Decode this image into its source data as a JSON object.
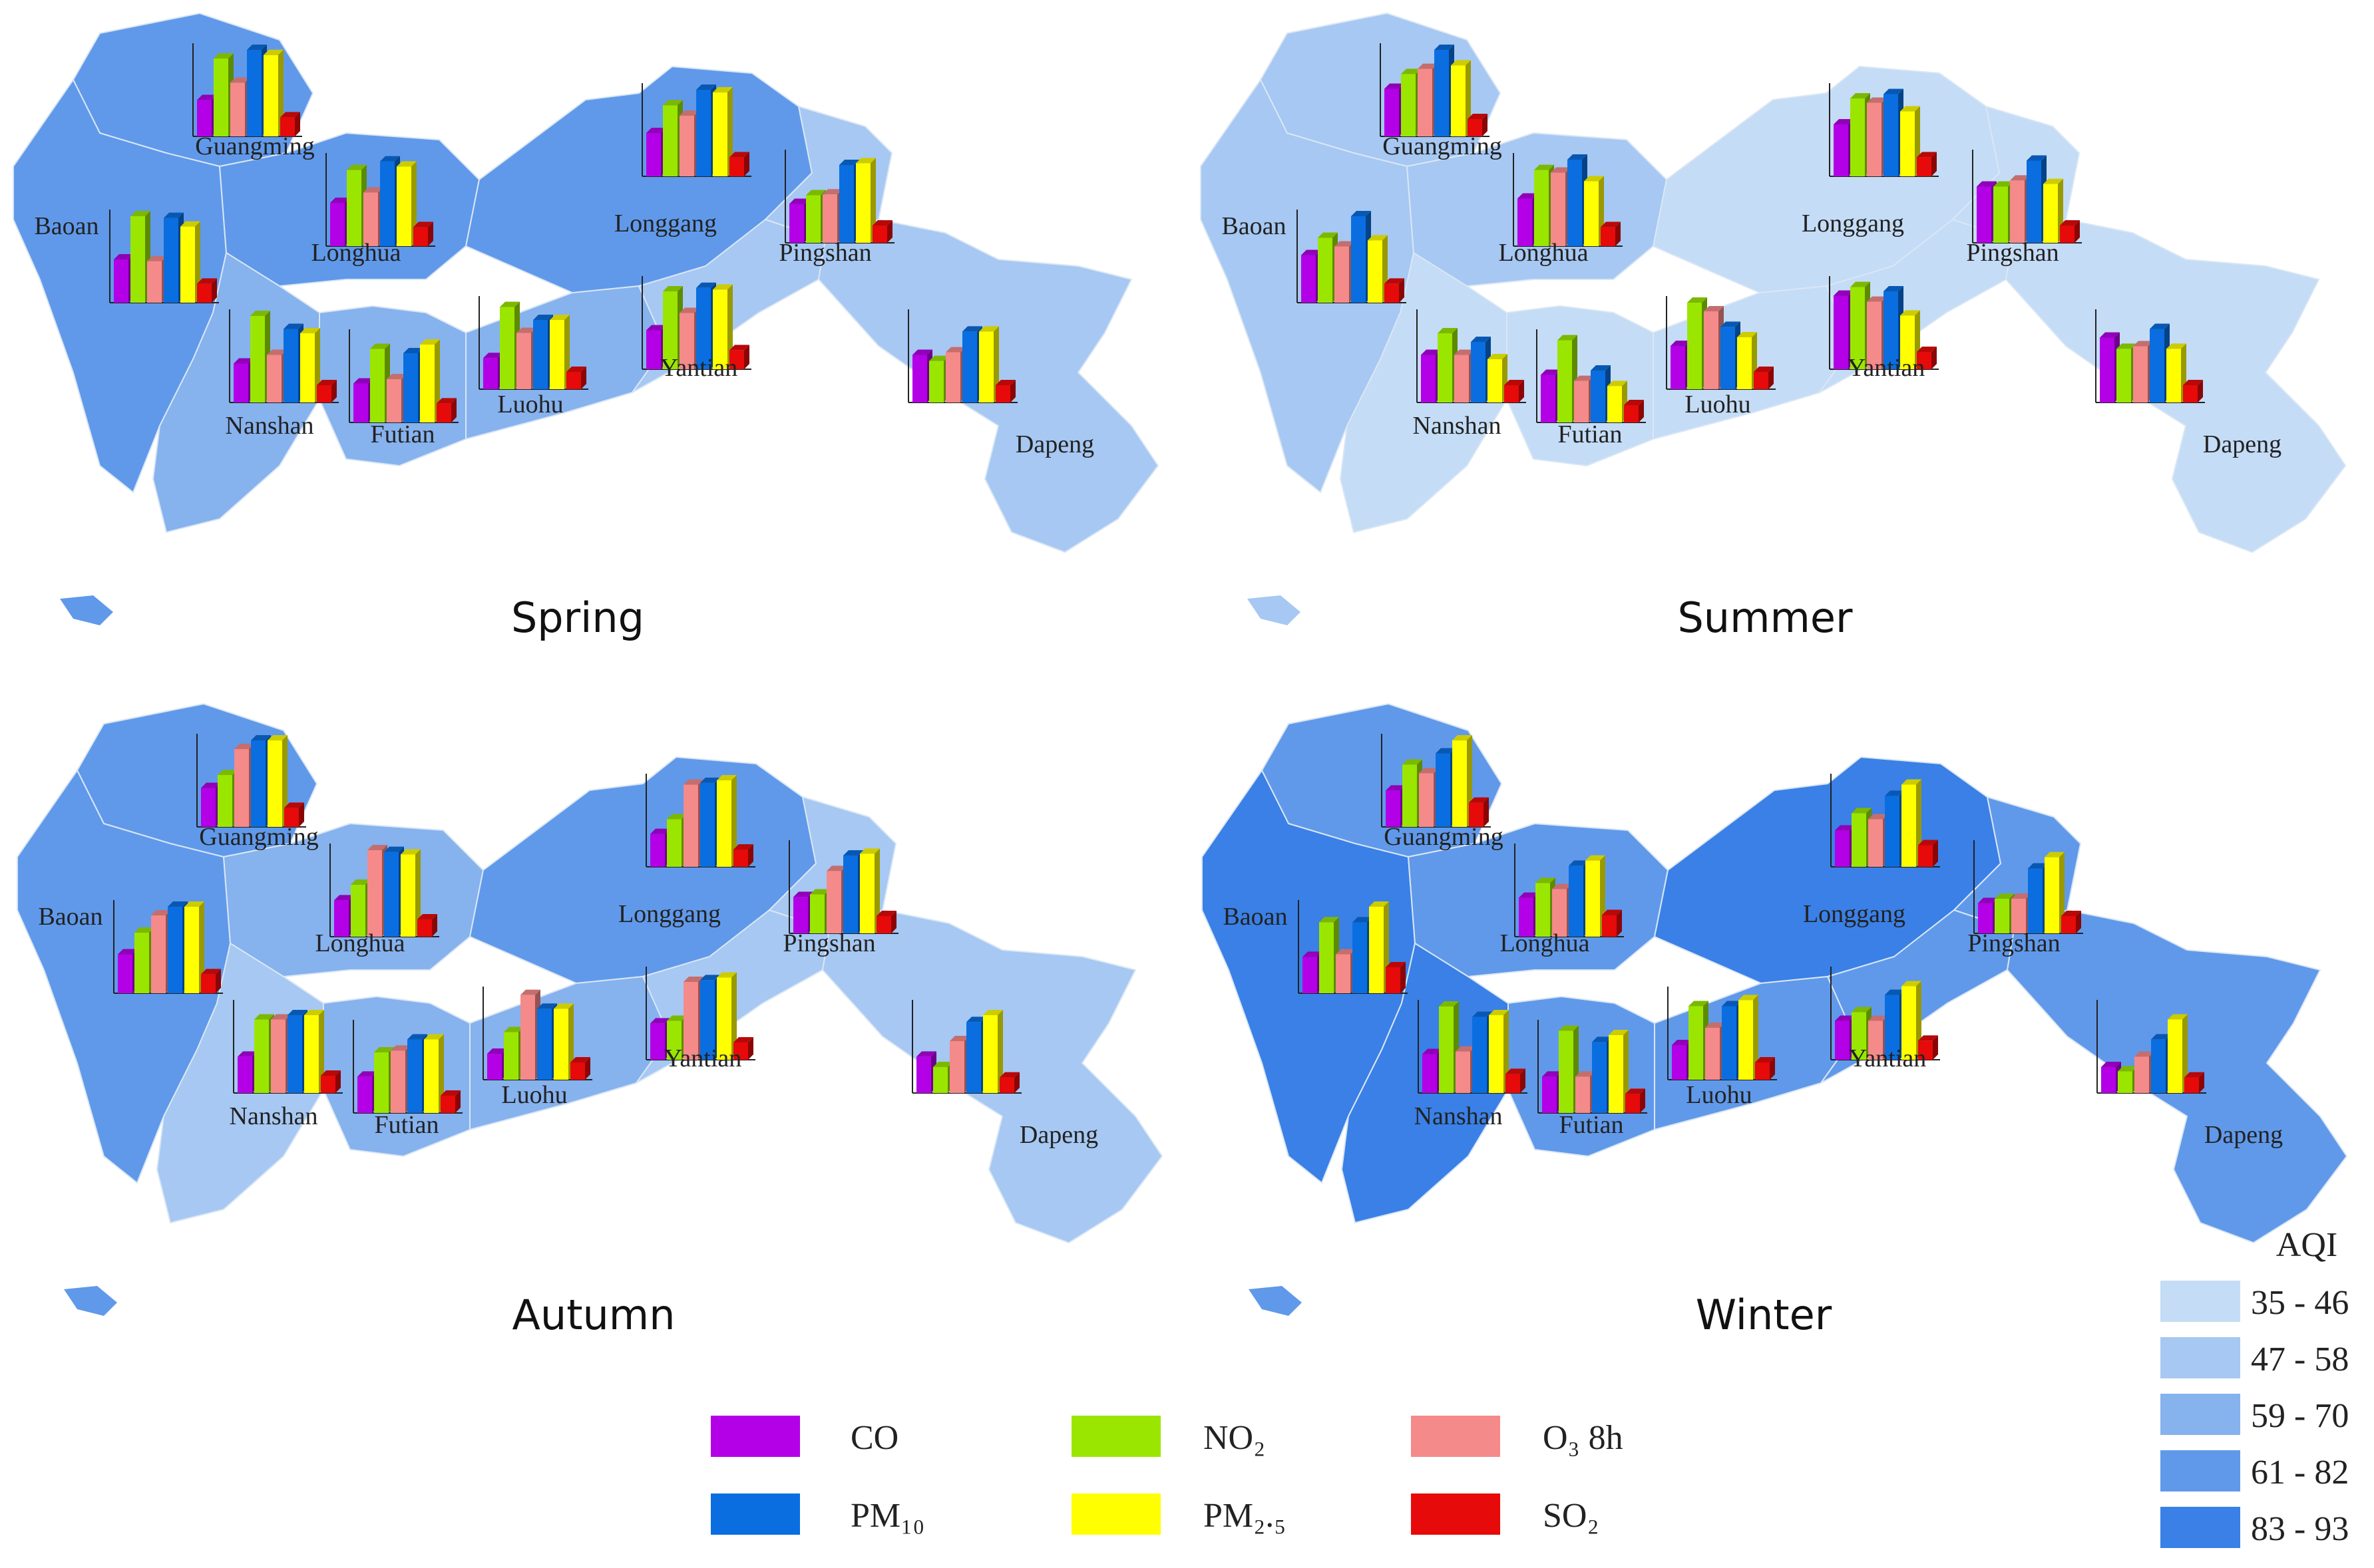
{
  "pollutant_colors": {
    "CO": "#b400e6",
    "NO2": "#9be600",
    "O3_8h": "#f58a8a",
    "PM10": "#0a6ee0",
    "PM2.5": "#ffff00",
    "SO2": "#e60a0a"
  },
  "pollutant_legend": [
    {
      "key": "CO",
      "label": "CO",
      "color": "#b400e6"
    },
    {
      "key": "NO2",
      "label": "NO₂",
      "color": "#9be600"
    },
    {
      "key": "O3_8h",
      "label": "O₃  8h",
      "color": "#f58a8a"
    },
    {
      "key": "PM10",
      "label": "PM₁₀",
      "color": "#0a6ee0"
    },
    {
      "key": "PM2.5",
      "label": "PM₂.₅",
      "color": "#ffff00"
    },
    {
      "key": "SO2",
      "label": "SO₂",
      "color": "#e60a0a"
    }
  ],
  "aqi_legend": {
    "title": "AQI",
    "classes": [
      {
        "label": "35 - 46",
        "color": "#c4dcf6"
      },
      {
        "label": "47 - 58",
        "color": "#a6c8f2"
      },
      {
        "label": "59 - 70",
        "color": "#86b2ee"
      },
      {
        "label": "61 - 82",
        "color": "#6099ea"
      },
      {
        "label": "83 - 93",
        "color": "#3a80e6"
      }
    ]
  },
  "seasons": [
    {
      "name": "Spring",
      "districts": [
        {
          "name": "Guangming",
          "aqi_class": 3,
          "bars": [
            0.42,
            0.9,
            0.62,
            1.0,
            0.94,
            0.22
          ]
        },
        {
          "name": "Baoan",
          "aqi_class": 3,
          "bars": [
            0.5,
            1.0,
            0.48,
            0.98,
            0.88,
            0.22
          ]
        },
        {
          "name": "Longhua",
          "aqi_class": 3,
          "bars": [
            0.5,
            0.88,
            0.62,
            0.98,
            0.92,
            0.22
          ]
        },
        {
          "name": "Longgang",
          "aqi_class": 3,
          "bars": [
            0.5,
            0.82,
            0.7,
            1.0,
            0.97,
            0.22
          ]
        },
        {
          "name": "Pingshan",
          "aqi_class": 1,
          "bars": [
            0.45,
            0.55,
            0.56,
            0.9,
            0.92,
            0.2
          ]
        },
        {
          "name": "Nanshan",
          "aqi_class": 2,
          "bars": [
            0.45,
            1.0,
            0.55,
            0.85,
            0.8,
            0.2
          ]
        },
        {
          "name": "Futian",
          "aqi_class": 2,
          "bars": [
            0.45,
            0.85,
            0.5,
            0.8,
            0.9,
            0.22
          ]
        },
        {
          "name": "Luohu",
          "aqi_class": 2,
          "bars": [
            0.36,
            0.95,
            0.65,
            0.8,
            0.8,
            0.2
          ]
        },
        {
          "name": "Yantian",
          "aqi_class": 1,
          "bars": [
            0.45,
            0.9,
            0.65,
            0.94,
            0.92,
            0.22
          ]
        },
        {
          "name": "Dapeng",
          "aqi_class": 1,
          "bars": [
            0.55,
            0.48,
            0.58,
            0.82,
            0.82,
            0.2
          ]
        }
      ]
    },
    {
      "name": "Summer",
      "districts": [
        {
          "name": "Guangming",
          "aqi_class": 1,
          "bars": [
            0.55,
            0.72,
            0.78,
            1.0,
            0.82,
            0.2
          ]
        },
        {
          "name": "Baoan",
          "aqi_class": 1,
          "bars": [
            0.55,
            0.75,
            0.65,
            1.0,
            0.72,
            0.22
          ]
        },
        {
          "name": "Longhua",
          "aqi_class": 1,
          "bars": [
            0.55,
            0.88,
            0.85,
            1.0,
            0.75,
            0.22
          ]
        },
        {
          "name": "Longgang",
          "aqi_class": 0,
          "bars": [
            0.6,
            0.9,
            0.85,
            0.95,
            0.75,
            0.22
          ]
        },
        {
          "name": "Pingshan",
          "aqi_class": 0,
          "bars": [
            0.65,
            0.65,
            0.72,
            0.95,
            0.68,
            0.2
          ]
        },
        {
          "name": "Nanshan",
          "aqi_class": 0,
          "bars": [
            0.55,
            0.8,
            0.55,
            0.7,
            0.5,
            0.2
          ]
        },
        {
          "name": "Futian",
          "aqi_class": 0,
          "bars": [
            0.55,
            0.95,
            0.48,
            0.6,
            0.42,
            0.2
          ]
        },
        {
          "name": "Luohu",
          "aqi_class": 0,
          "bars": [
            0.5,
            1.0,
            0.9,
            0.72,
            0.6,
            0.2
          ]
        },
        {
          "name": "Yantian",
          "aqi_class": 0,
          "bars": [
            0.85,
            0.95,
            0.78,
            0.9,
            0.62,
            0.2
          ]
        },
        {
          "name": "Dapeng",
          "aqi_class": 0,
          "bars": [
            0.75,
            0.62,
            0.65,
            0.85,
            0.62,
            0.2
          ]
        }
      ]
    },
    {
      "name": "Autumn",
      "districts": [
        {
          "name": "Guangming",
          "aqi_class": 3,
          "bars": [
            0.45,
            0.6,
            0.9,
            1.0,
            1.0,
            0.22
          ]
        },
        {
          "name": "Baoan",
          "aqi_class": 3,
          "bars": [
            0.45,
            0.7,
            0.9,
            1.0,
            1.0,
            0.22
          ]
        },
        {
          "name": "Longhua",
          "aqi_class": 2,
          "bars": [
            0.42,
            0.6,
            1.0,
            0.98,
            0.95,
            0.2
          ]
        },
        {
          "name": "Longgang",
          "aqi_class": 3,
          "bars": [
            0.38,
            0.55,
            0.95,
            0.97,
            1.0,
            0.2
          ]
        },
        {
          "name": "Pingshan",
          "aqi_class": 1,
          "bars": [
            0.42,
            0.45,
            0.72,
            0.9,
            0.92,
            0.2
          ]
        },
        {
          "name": "Nanshan",
          "aqi_class": 1,
          "bars": [
            0.42,
            0.85,
            0.85,
            0.9,
            0.9,
            0.2
          ]
        },
        {
          "name": "Futian",
          "aqi_class": 2,
          "bars": [
            0.42,
            0.7,
            0.72,
            0.85,
            0.85,
            0.2
          ]
        },
        {
          "name": "Luohu",
          "aqi_class": 2,
          "bars": [
            0.3,
            0.55,
            0.98,
            0.82,
            0.82,
            0.2
          ]
        },
        {
          "name": "Yantian",
          "aqi_class": 1,
          "bars": [
            0.42,
            0.45,
            0.9,
            0.92,
            0.95,
            0.2
          ]
        },
        {
          "name": "Dapeng",
          "aqi_class": 1,
          "bars": [
            0.42,
            0.3,
            0.6,
            0.82,
            0.9,
            0.18
          ]
        }
      ]
    },
    {
      "name": "Winter",
      "districts": [
        {
          "name": "Guangming",
          "aqi_class": 3,
          "bars": [
            0.42,
            0.72,
            0.62,
            0.85,
            1.0,
            0.28
          ]
        },
        {
          "name": "Baoan",
          "aqi_class": 4,
          "bars": [
            0.42,
            0.82,
            0.45,
            0.82,
            1.0,
            0.3
          ]
        },
        {
          "name": "Longhua",
          "aqi_class": 3,
          "bars": [
            0.45,
            0.62,
            0.55,
            0.82,
            0.88,
            0.25
          ]
        },
        {
          "name": "Longgang",
          "aqi_class": 4,
          "bars": [
            0.42,
            0.62,
            0.55,
            0.82,
            0.95,
            0.25
          ]
        },
        {
          "name": "Pingshan",
          "aqi_class": 3,
          "bars": [
            0.35,
            0.4,
            0.4,
            0.75,
            0.88,
            0.2
          ]
        },
        {
          "name": "Nanshan",
          "aqi_class": 4,
          "bars": [
            0.45,
            1.0,
            0.48,
            0.88,
            0.9,
            0.22
          ]
        },
        {
          "name": "Futian",
          "aqi_class": 3,
          "bars": [
            0.42,
            0.95,
            0.42,
            0.82,
            0.9,
            0.22
          ]
        },
        {
          "name": "Luohu",
          "aqi_class": 3,
          "bars": [
            0.4,
            0.85,
            0.6,
            0.85,
            0.92,
            0.2
          ]
        },
        {
          "name": "Yantian",
          "aqi_class": 3,
          "bars": [
            0.45,
            0.55,
            0.45,
            0.75,
            0.85,
            0.22
          ]
        },
        {
          "name": "Dapeng",
          "aqi_class": 3,
          "bars": [
            0.3,
            0.25,
            0.42,
            0.62,
            0.85,
            0.18
          ]
        }
      ]
    }
  ]
}
